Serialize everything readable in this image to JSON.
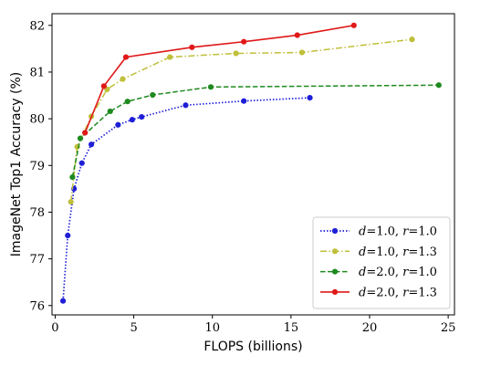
{
  "chart_data": {
    "type": "line",
    "title": "",
    "xlabel": "FLOPS (billions)",
    "ylabel": "ImageNet Top1 Accuracy (%)",
    "xlim": [
      -0.2,
      25.4
    ],
    "ylim": [
      75.8,
      82.25
    ],
    "xticks": [
      0,
      5,
      10,
      15,
      20,
      25
    ],
    "yticks": [
      76,
      77,
      78,
      79,
      80,
      81,
      82
    ],
    "grid": false,
    "legend_position": "lower-right",
    "series": [
      {
        "name": "d=1.0, r=1.0",
        "legend": {
          "d": "1.0",
          "r": "1.0"
        },
        "color": "#1f1fd8",
        "dash": "dotted",
        "x": [
          0.5,
          0.8,
          1.2,
          1.7,
          2.3,
          4.0,
          4.9,
          5.5,
          8.3,
          12.0,
          16.2
        ],
        "y": [
          76.1,
          77.5,
          78.5,
          79.05,
          79.45,
          79.87,
          79.98,
          80.04,
          80.29,
          80.38,
          80.45
        ]
      },
      {
        "name": "d=1.0, r=1.3",
        "legend": {
          "d": "1.0",
          "r": "1.3"
        },
        "color": "#bfbf3a",
        "dash": "dashdot",
        "x": [
          1.0,
          1.4,
          2.3,
          3.3,
          4.3,
          7.3,
          11.5,
          15.7,
          22.7
        ],
        "y": [
          78.22,
          79.4,
          80.05,
          80.63,
          80.85,
          81.32,
          81.4,
          81.42,
          81.7
        ]
      },
      {
        "name": "d=2.0, r=1.0",
        "legend": {
          "d": "2.0",
          "r": "1.0"
        },
        "color": "#1f8a1f",
        "dash": "dashed",
        "x": [
          1.1,
          1.6,
          3.5,
          4.6,
          6.2,
          9.9,
          24.4
        ],
        "y": [
          78.75,
          79.58,
          80.16,
          80.37,
          80.51,
          80.68,
          80.72
        ]
      },
      {
        "name": "d=2.0, r=1.3",
        "legend": {
          "d": "2.0",
          "r": "1.3"
        },
        "color": "#e01818",
        "dash": "solid",
        "x": [
          1.9,
          3.1,
          4.5,
          8.7,
          12.0,
          15.4,
          19.0
        ],
        "y": [
          79.7,
          80.7,
          81.32,
          81.53,
          81.65,
          81.79,
          82.0
        ]
      }
    ]
  }
}
